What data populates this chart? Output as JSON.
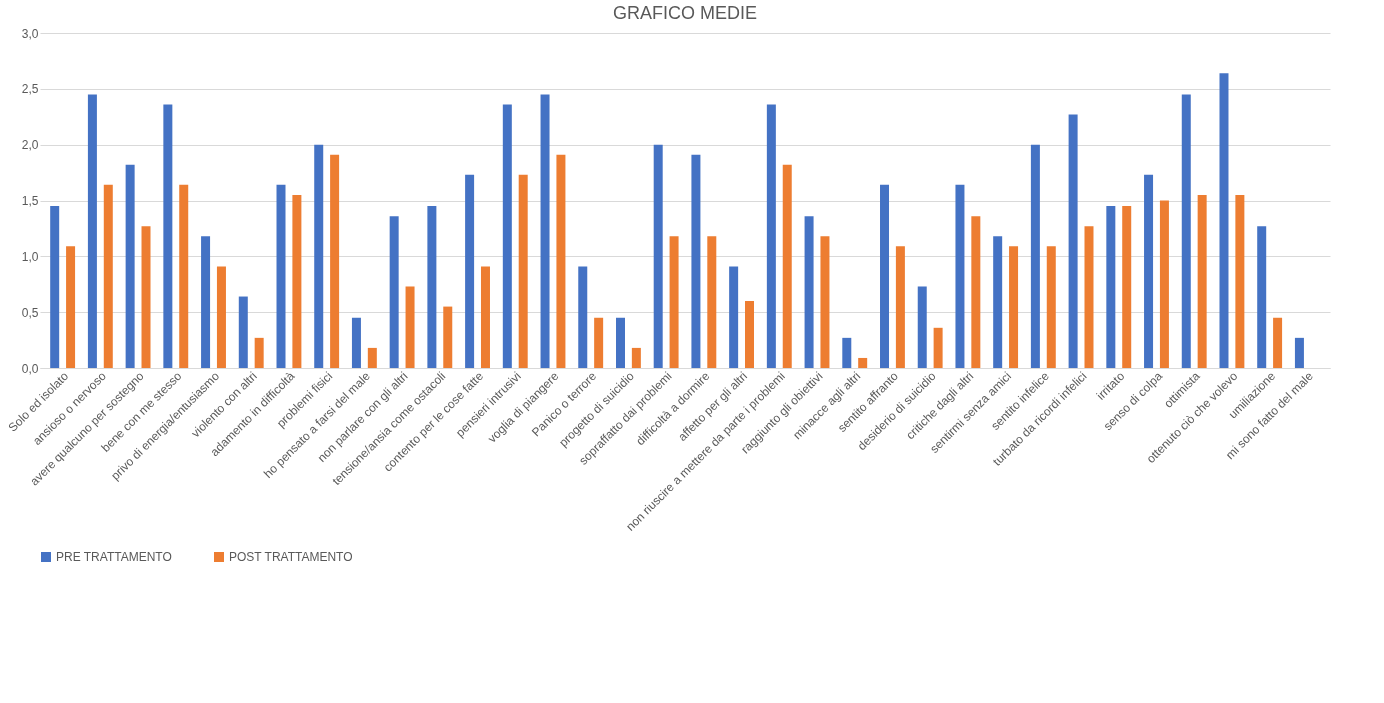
{
  "chart_data": {
    "type": "bar",
    "title": "GRAFICO MEDIE",
    "categories": [
      "Solo ed isolato",
      "ansioso o nervoso",
      "avere qualcuno per sostegno",
      "bene con me stesso",
      "privo di energia/entusiasmo",
      "violento con altri",
      "adamento in difficoltà",
      "problemi fisici",
      "ho pensato a farsi del male",
      "non parlare con gli altri",
      "tensione/ansia come ostacoli",
      "contento per le cose fatte",
      "pensieri intrusivi",
      "voglia di piangere",
      "Panico o terrore",
      "progetto di suicidio",
      "sopraffatto dai problemi",
      "difficoltà a dormire",
      "affetto per gli altri",
      "non riuscire a mettere da parte i problemi",
      "raggiunto gli obiettivi",
      "minacce agli altri",
      "sentito affranto",
      "desiderio di suicidio",
      "critiche dagli altri",
      "sentirmi senza amici",
      "sentito infelice",
      "turbato da ricordi infelici",
      "irritato",
      "senso di colpa",
      "ottimista",
      "ottenuto ciò che volevo",
      "umiliazione",
      "mi sono fatto del male"
    ],
    "series": [
      {
        "name": "PRE TRATTAMENTO",
        "color": "#4472c4",
        "values": [
          1.45,
          2.45,
          1.82,
          2.36,
          1.18,
          0.64,
          1.64,
          2.0,
          0.45,
          1.36,
          1.45,
          1.73,
          2.36,
          2.45,
          0.91,
          0.45,
          2.0,
          1.91,
          0.91,
          2.36,
          1.36,
          0.27,
          1.64,
          0.73,
          1.64,
          1.18,
          2.0,
          2.27,
          1.45,
          1.73,
          2.45,
          2.64,
          1.27,
          0.27
        ]
      },
      {
        "name": "POST TRATTAMENTO",
        "color": "#ed7d31",
        "values": [
          1.09,
          1.64,
          1.27,
          1.64,
          0.91,
          0.27,
          1.55,
          1.91,
          0.18,
          0.73,
          0.55,
          0.91,
          1.73,
          1.91,
          0.45,
          0.18,
          1.18,
          1.18,
          0.6,
          1.82,
          1.18,
          0.09,
          1.09,
          0.36,
          1.36,
          1.09,
          1.09,
          1.27,
          1.45,
          1.5,
          1.55,
          1.55,
          0.45,
          0
        ]
      }
    ],
    "ylim": [
      0,
      3.0
    ],
    "yticks": [
      {
        "value": 0,
        "label": "0,0"
      },
      {
        "value": 0.5,
        "label": "0,5"
      },
      {
        "value": 1,
        "label": "1,0"
      },
      {
        "value": 1.5,
        "label": "1,5"
      },
      {
        "value": 2,
        "label": "2,0"
      },
      {
        "value": 2.5,
        "label": "2,5"
      },
      {
        "value": 3,
        "label": "3,0"
      }
    ],
    "grid": "y",
    "legend": "bottom"
  }
}
